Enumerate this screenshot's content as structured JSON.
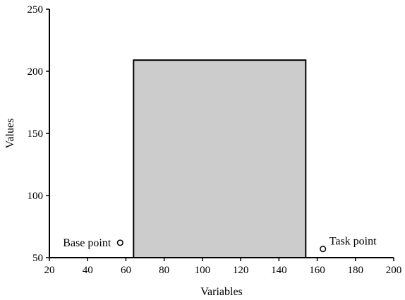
{
  "chart_data": {
    "type": "bar",
    "title": "",
    "xlabel": "Variables",
    "ylabel": "Values",
    "xlim": [
      20,
      200
    ],
    "ylim": [
      50,
      250
    ],
    "x_ticks": [
      20,
      40,
      60,
      80,
      100,
      120,
      140,
      160,
      180,
      200
    ],
    "y_ticks": [
      50,
      100,
      150,
      200,
      250
    ],
    "grid": false,
    "legend": "none",
    "colors": {
      "bar_fill": "#cccccc",
      "stroke": "#000000",
      "background": "#ffffff"
    },
    "bars": [
      {
        "x_start": 64,
        "x_end": 154,
        "value": 209
      }
    ],
    "points": [
      {
        "label": "Base point",
        "x": 57,
        "y": 62,
        "marker": "open-circle",
        "label_position": "left"
      },
      {
        "label": "Task point",
        "x": 163,
        "y": 57,
        "marker": "open-circle",
        "label_position": "upper-right"
      }
    ]
  }
}
